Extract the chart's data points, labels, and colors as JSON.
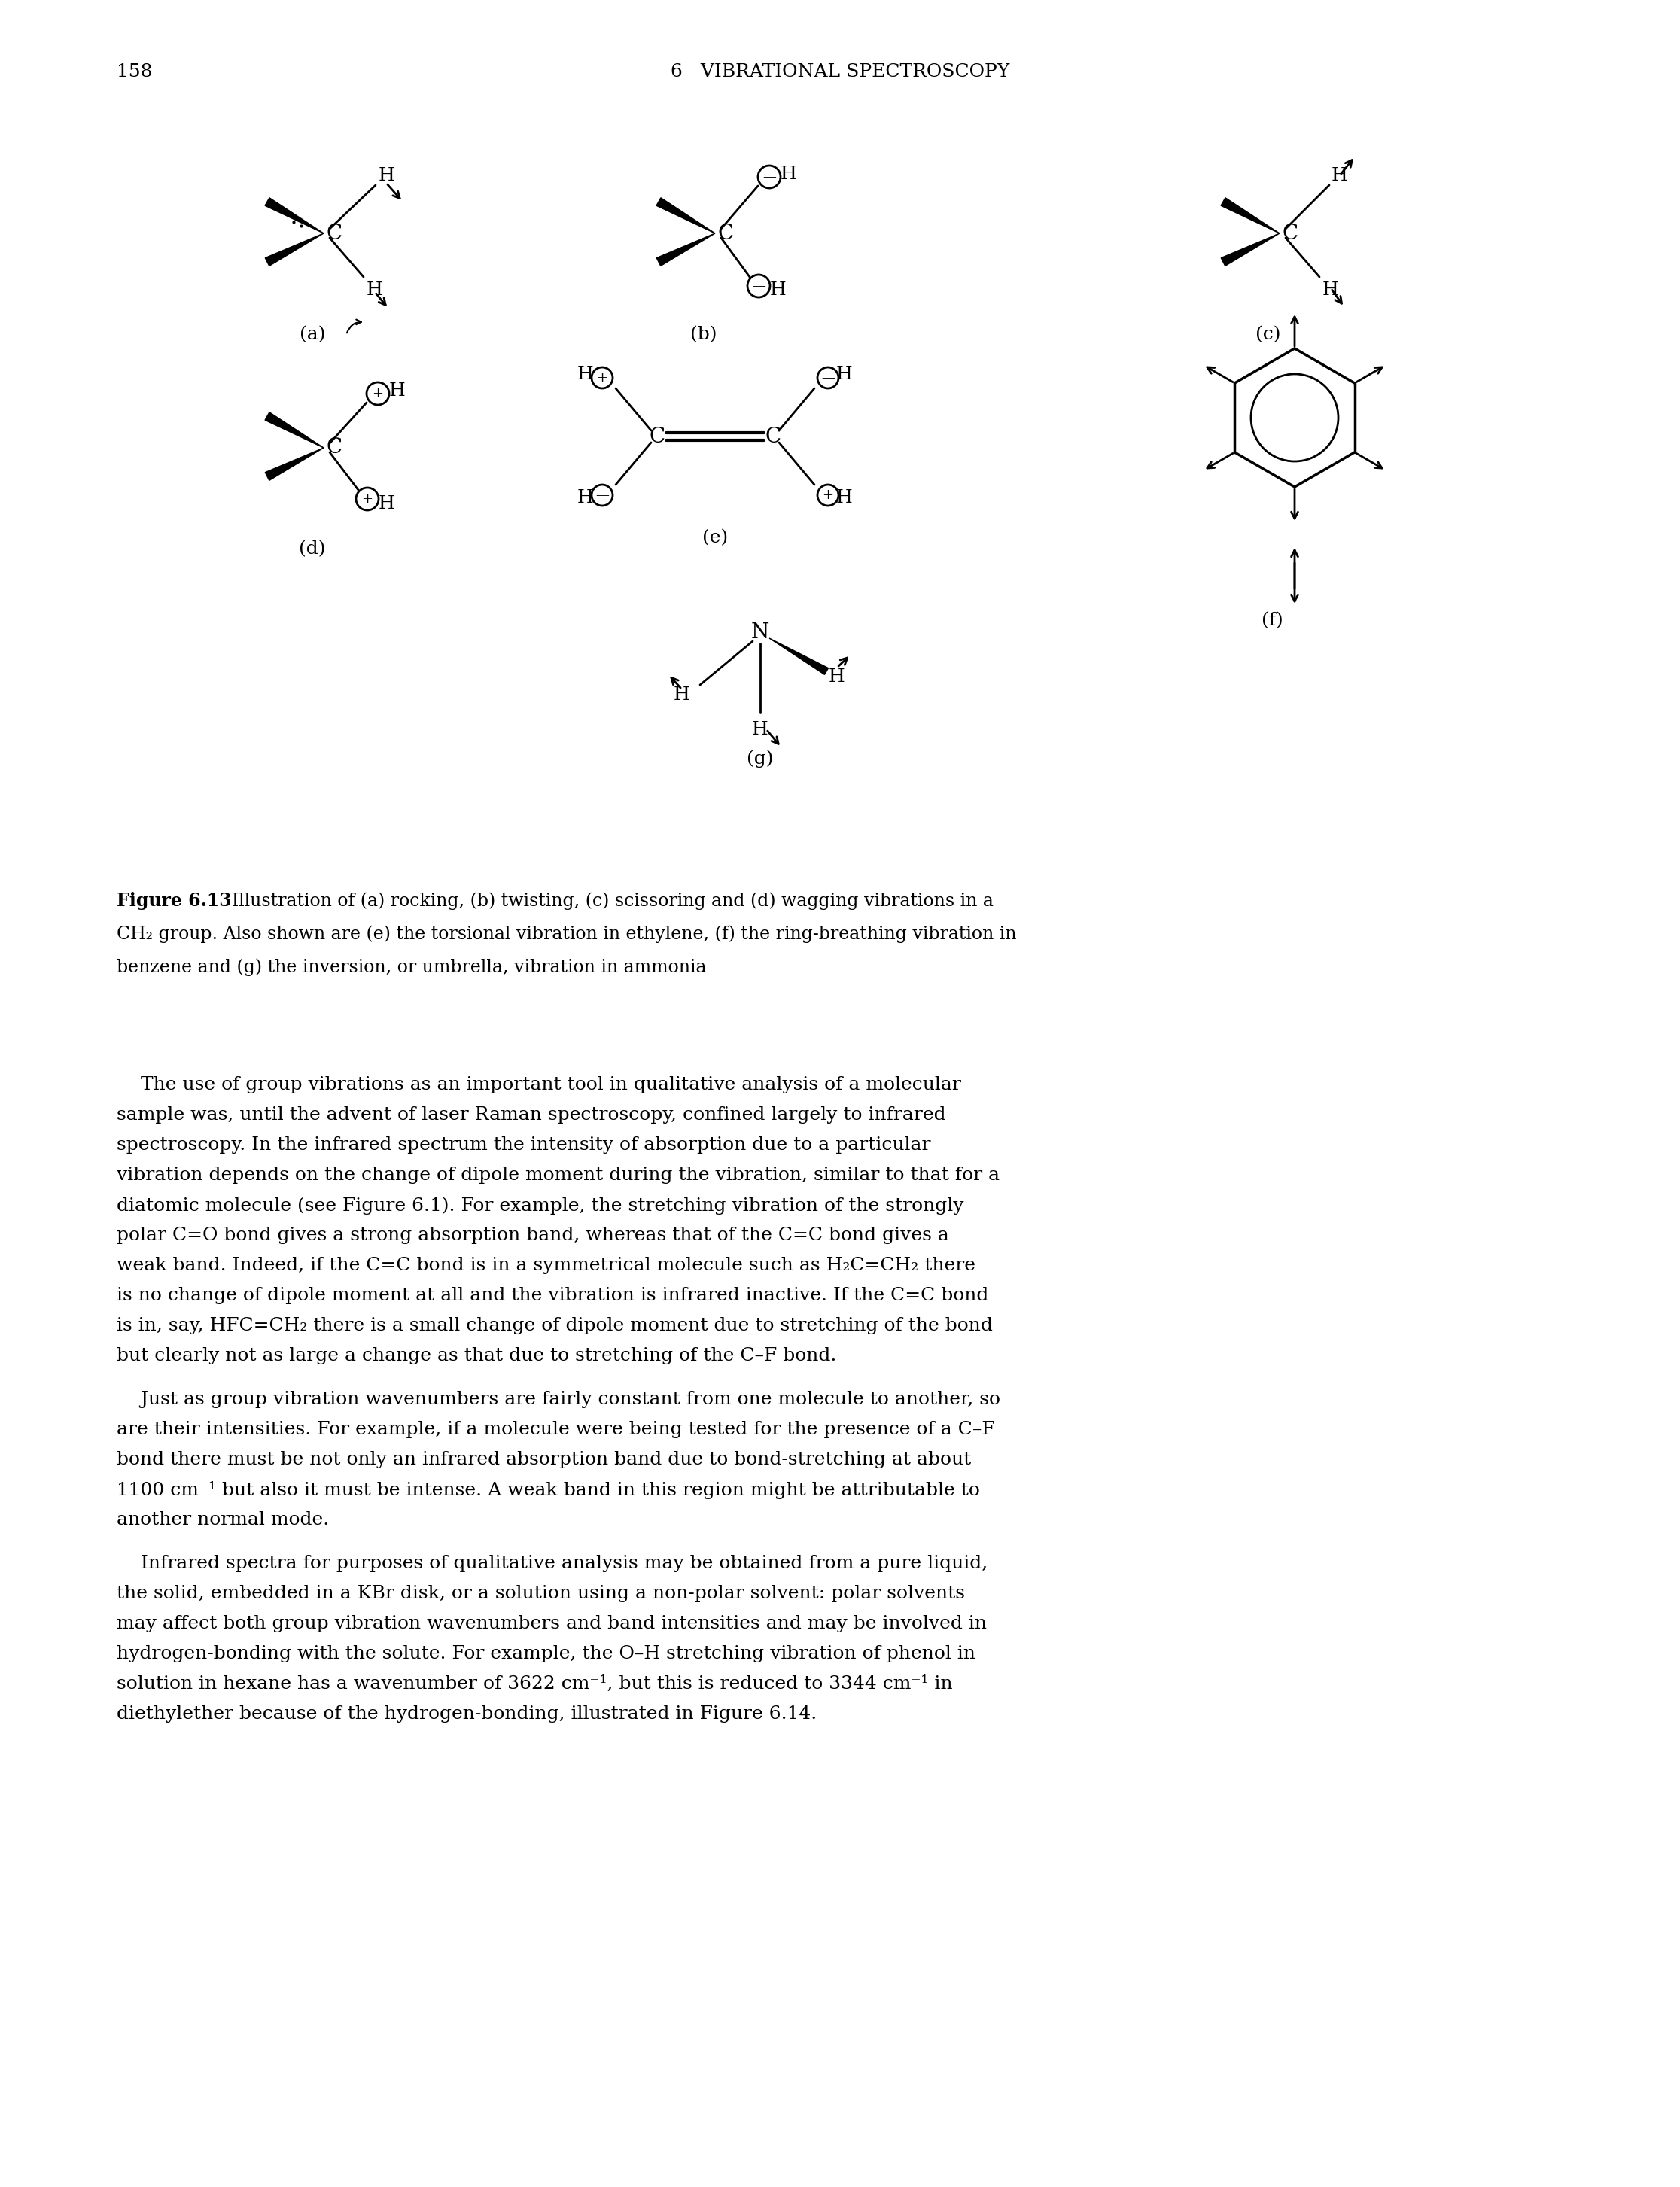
{
  "page_number": "158",
  "header": "6   VIBRATIONAL SPECTROSCOPY",
  "figure_label": "Figure 6.13",
  "figure_caption_bold": "Figure 6.13",
  "figure_caption_rest": "  Illustration of (a) rocking, (b) twisting, (c) scissoring and (d) wagging vibrations in a",
  "figure_caption_line2": "CH₂ group. Also shown are (e) the torsional vibration in ethylene, (f) the ring-breathing vibration in",
  "figure_caption_line3": "benzene and (g) the inversion, or umbrella, vibration in ammonia",
  "body_para1": [
    "    The use of group vibrations as an important tool in qualitative analysis of a molecular",
    "sample was, until the advent of laser Raman spectroscopy, confined largely to infrared",
    "spectroscopy. In the infrared spectrum the intensity of absorption due to a particular",
    "vibration depends on the change of dipole moment during the vibration, similar to that for a",
    "diatomic molecule (see Figure 6.1). For example, the stretching vibration of the strongly",
    "polar C=O bond gives a strong absorption band, whereas that of the C=C bond gives a",
    "weak band. Indeed, if the C=C bond is in a symmetrical molecule such as H₂C=CH₂ there",
    "is no change of dipole moment at all and the vibration is infrared inactive. If the C=C bond",
    "is in, say, HFC=CH₂ there is a small change of dipole moment due to stretching of the bond",
    "but clearly not as large a change as that due to stretching of the C–F bond."
  ],
  "body_para2": [
    "    Just as group vibration wavenumbers are fairly constant from one molecule to another, so",
    "are their intensities. For example, if a molecule were being tested for the presence of a C–F",
    "bond there must be not only an infrared absorption band due to bond-stretching at about",
    "1100 cm⁻¹ but also it must be intense. A weak band in this region might be attributable to",
    "another normal mode."
  ],
  "body_para3": [
    "    Infrared spectra for purposes of qualitative analysis may be obtained from a pure liquid,",
    "the solid, embedded in a KBr disk, or a solution using a non-polar solvent: polar solvents",
    "may affect both group vibration wavenumbers and band intensities and may be involved in",
    "hydrogen-bonding with the solute. For example, the O–H stretching vibration of phenol in",
    "solution in hexane has a wavenumber of 3622 cm⁻¹, but this is reduced to 3344 cm⁻¹ in",
    "diethylether because of the hydrogen-bonding, illustrated in Figure 6.14."
  ],
  "background_color": "#ffffff",
  "text_color": "#000000"
}
